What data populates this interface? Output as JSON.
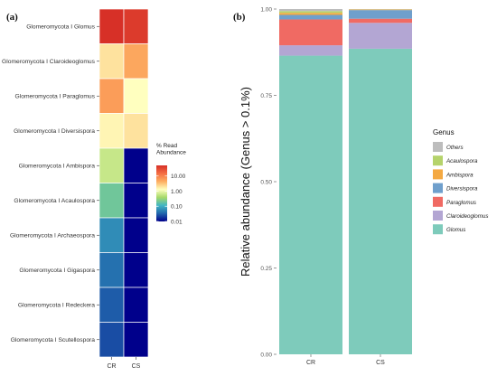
{
  "chart_data": [
    {
      "type": "heatmap",
      "panel_label": "(a)",
      "columns": [
        "CR",
        "CS"
      ],
      "rows": [
        "Glomeromycota I Glomus",
        "Glomeromycota I Claroideoglomus",
        "Glomeromycota I Paraglomus",
        "Glomeromycota I Diversispora",
        "Glomeromycota I Ambispora",
        "Glomeromycota I Acaulospora",
        "Glomeromycota I Archaeospora",
        "Glomeromycota I Gigaspora",
        "Glomeromycota I Redeckera",
        "Glomeromycota I Scutellospora"
      ],
      "values": [
        [
          60,
          40
        ],
        [
          2,
          5
        ],
        [
          6,
          1.3
        ],
        [
          1.5,
          2
        ],
        [
          0.6,
          0.01
        ],
        [
          0.2,
          0.01
        ],
        [
          0.06,
          0.01
        ],
        [
          0.04,
          0.01
        ],
        [
          0.03,
          0.01
        ],
        [
          0.025,
          0.01
        ]
      ],
      "scale": "log",
      "color_range": [
        0.01,
        50
      ],
      "legend": {
        "title_lines": [
          "% Read",
          "Abundance"
        ],
        "ticks": [
          "10.00",
          "1.00",
          "0.10",
          "0.01"
        ],
        "tick_values": [
          10,
          1,
          0.1,
          0.01
        ],
        "colors": [
          "#00008b",
          "#2166ac",
          "#41b6c4",
          "#a6d96a",
          "#ffffbf",
          "#fdae61",
          "#f46d43",
          "#d73027"
        ]
      }
    },
    {
      "type": "bar",
      "stacked": true,
      "panel_label": "(b)",
      "categories": [
        "CR",
        "CS"
      ],
      "ylabel": "Relative abundance (Genus > 0.1%)",
      "ylim": [
        0,
        1
      ],
      "yticks": [
        "0.00",
        "0.25",
        "0.50",
        "0.75",
        "1.00"
      ],
      "ytick_values": [
        0,
        0.25,
        0.5,
        0.75,
        1
      ],
      "legend_title": "Genus",
      "series": [
        {
          "name": "Glomus",
          "color": "#7ecbbb",
          "values": [
            0.865,
            0.885
          ]
        },
        {
          "name": "Claroideoglomus",
          "color": "#b3a6d3",
          "values": [
            0.03,
            0.075
          ]
        },
        {
          "name": "Paraglomus",
          "color": "#f06a63",
          "values": [
            0.075,
            0.012
          ]
        },
        {
          "name": "Diversispora",
          "color": "#6f9fcc",
          "values": [
            0.013,
            0.025
          ]
        },
        {
          "name": "Ambispora",
          "color": "#f4a942",
          "values": [
            0.006,
            0.0015
          ]
        },
        {
          "name": "Acaulospora",
          "color": "#b5d36b",
          "values": [
            0.005,
            0.0005
          ]
        },
        {
          "name": "Others",
          "color": "#bdbdbd",
          "values": [
            0.006,
            0.001
          ]
        }
      ],
      "legend_order": [
        "Others",
        "Acaulospora",
        "Ambispora",
        "Diversispora",
        "Paraglomus",
        "Claroideoglomus",
        "Glomus"
      ]
    }
  ]
}
